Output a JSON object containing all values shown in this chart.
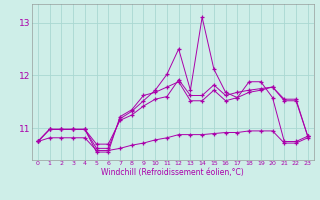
{
  "xlabel": "Windchill (Refroidissement éolien,°C)",
  "background_color": "#ceeee8",
  "grid_color": "#aad8d2",
  "line_color": "#aa00aa",
  "x_values": [
    0,
    1,
    2,
    3,
    4,
    5,
    6,
    7,
    8,
    9,
    10,
    11,
    12,
    13,
    14,
    15,
    16,
    17,
    18,
    19,
    20,
    21,
    22,
    23
  ],
  "series1": [
    10.75,
    10.98,
    10.98,
    10.98,
    10.98,
    10.7,
    10.7,
    11.15,
    11.25,
    11.42,
    11.55,
    11.6,
    11.92,
    11.62,
    11.62,
    11.82,
    11.62,
    11.68,
    11.72,
    11.75,
    11.78,
    11.55,
    11.55,
    10.85
  ],
  "series2": [
    10.75,
    10.98,
    10.98,
    10.98,
    10.98,
    10.62,
    10.62,
    11.18,
    11.32,
    11.52,
    11.72,
    12.02,
    12.5,
    11.72,
    13.1,
    12.12,
    11.68,
    11.58,
    11.88,
    11.88,
    11.58,
    10.75,
    10.75,
    10.85
  ],
  "series3": [
    10.75,
    10.98,
    10.98,
    10.98,
    10.98,
    10.55,
    10.55,
    11.22,
    11.35,
    11.62,
    11.68,
    11.78,
    11.88,
    11.52,
    11.52,
    11.72,
    11.52,
    11.58,
    11.68,
    11.72,
    11.78,
    11.52,
    11.52,
    10.85
  ],
  "series4": [
    10.75,
    10.82,
    10.82,
    10.82,
    10.82,
    10.58,
    10.58,
    10.62,
    10.68,
    10.72,
    10.78,
    10.82,
    10.88,
    10.88,
    10.88,
    10.9,
    10.92,
    10.92,
    10.95,
    10.95,
    10.95,
    10.72,
    10.72,
    10.82
  ],
  "ylim": [
    10.4,
    13.35
  ],
  "yticks": [
    11,
    12,
    13
  ],
  "xlim": [
    -0.5,
    23.5
  ],
  "figsize": [
    3.2,
    2.0
  ],
  "dpi": 100
}
